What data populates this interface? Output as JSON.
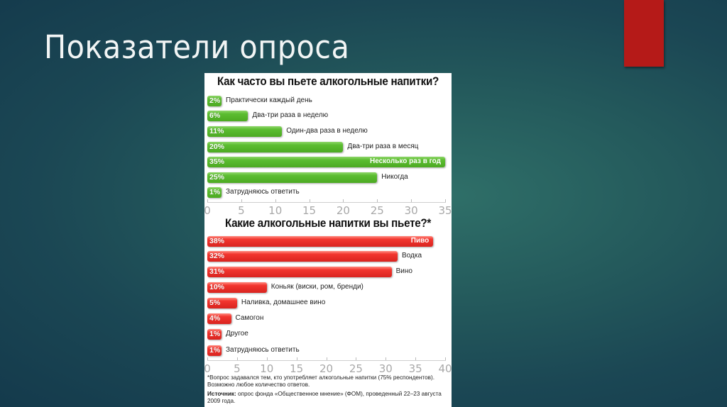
{
  "slide": {
    "title": "Показатели опроса",
    "accent_color": "#b51a18",
    "background_color": "#1f4f58"
  },
  "chart_data": [
    {
      "type": "bar",
      "orientation": "horizontal",
      "title": "Как часто вы пьете алкогольные напитки?",
      "categories": [
        "Практически каждый день",
        "Два-три раза в неделю",
        "Один-два раза в неделю",
        "Два-три раза в месяц",
        "Несколько раз в год",
        "Никогда",
        "Затрудняюсь ответить"
      ],
      "values": [
        2,
        6,
        11,
        20,
        35,
        25,
        1
      ],
      "value_labels": [
        "2%",
        "6%",
        "11%",
        "20%",
        "35%",
        "25%",
        "1%"
      ],
      "xlim": [
        0,
        35
      ],
      "xticks": [
        "0",
        "5",
        "10",
        "15",
        "20",
        "25",
        "30",
        "35"
      ],
      "bar_color": "#52b327",
      "xlabel": "",
      "ylabel": ""
    },
    {
      "type": "bar",
      "orientation": "horizontal",
      "title": "Какие алкогольные напитки вы пьете?*",
      "categories": [
        "Пиво",
        "Водка",
        "Вино",
        "Коньяк (виски, ром, бренди)",
        "Наливка, домашнее вино",
        "Самогон",
        "Другое",
        "Затрудняюсь ответить"
      ],
      "values": [
        38,
        32,
        31,
        10,
        5,
        4,
        1,
        1
      ],
      "value_labels": [
        "38%",
        "32%",
        "31%",
        "10%",
        "5%",
        "4%",
        "1%",
        "1%"
      ],
      "xlim": [
        0,
        40
      ],
      "xticks": [
        "0",
        "5",
        "10",
        "15",
        "20",
        "25",
        "30",
        "35",
        "40"
      ],
      "bar_color": "#e8302a",
      "xlabel": "",
      "ylabel": ""
    }
  ],
  "footnotes": {
    "note": "*Вопрос задавался тем, кто употребляет алкогольные напитки (75% респондентов). Возможно любое количество ответов.",
    "source_label": "Источник:",
    "source_text": " опрос фонда «Общественное мнение» (ФОМ), проведенный 22–23 августа 2009 года."
  }
}
